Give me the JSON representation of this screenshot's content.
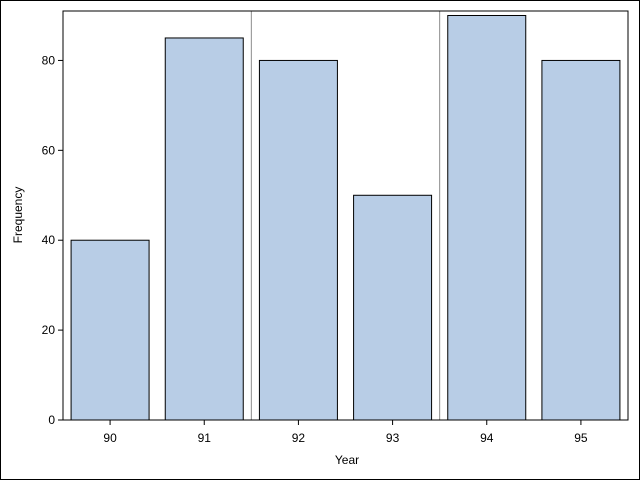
{
  "colors": {
    "bar_fill": "#b8cde6",
    "bar_stroke": "#000000",
    "axis": "#000000",
    "refline": "#8c8c8c",
    "background": "#ffffff"
  },
  "chart_data": {
    "type": "bar",
    "title": "",
    "xlabel": "Year",
    "ylabel": "Frequency",
    "categories": [
      "90",
      "91",
      "92",
      "93",
      "94",
      "95"
    ],
    "values": [
      40,
      85,
      80,
      50,
      90,
      80
    ],
    "ylim": [
      0,
      91
    ],
    "yticks": [
      0,
      20,
      40,
      60,
      80
    ],
    "reference_lines_between": [
      [
        "91",
        "92"
      ],
      [
        "93",
        "94"
      ]
    ],
    "grid": false,
    "legend": "none"
  }
}
